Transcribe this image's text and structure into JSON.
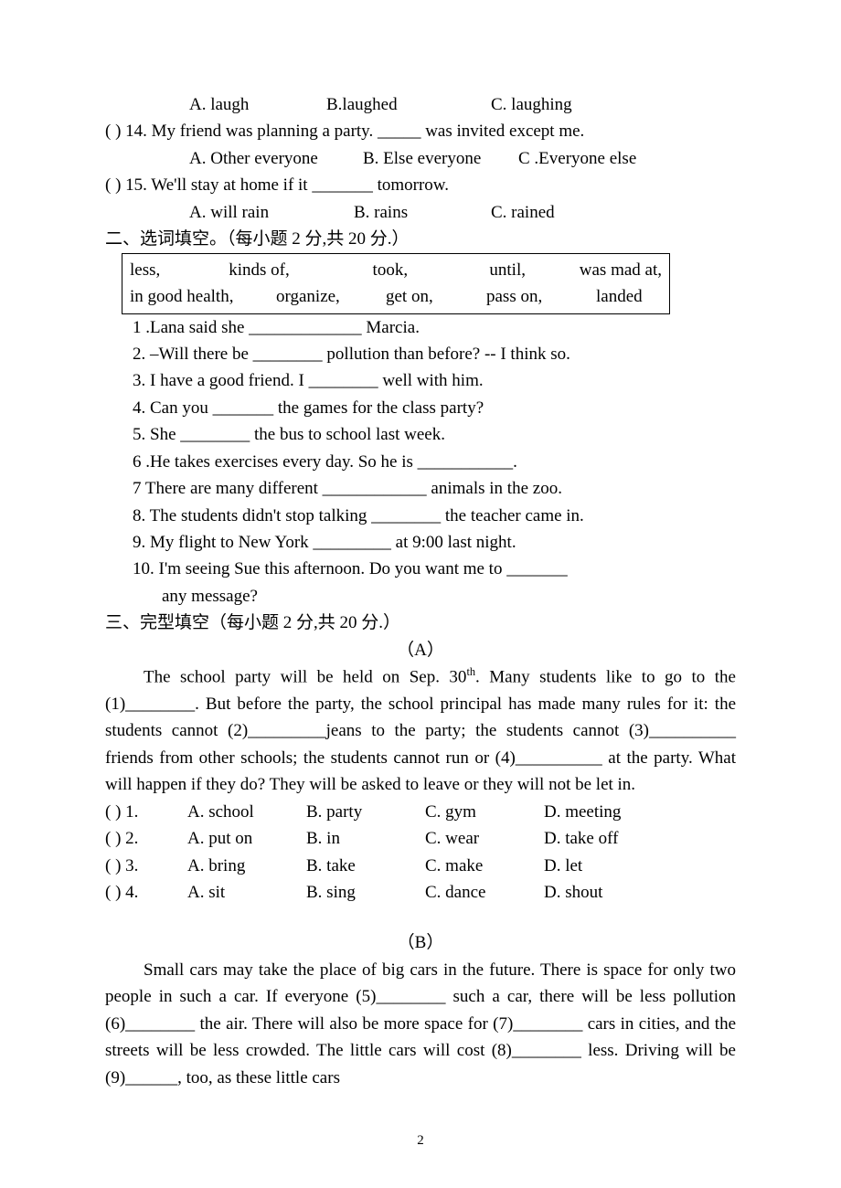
{
  "text_color": "#000000",
  "background_color": "#ffffff",
  "font_family": "Times New Roman",
  "base_fontsize_pt": 14,
  "page_number": "2",
  "q13_opts": {
    "a": "A. laugh",
    "b": "B.laughed",
    "c": "C. laughing"
  },
  "q14": {
    "stem": "(      ) 14. My friend was planning a party. _____ was invited except me.",
    "a": "A. Other everyone",
    "b": "B. Else everyone",
    "c": "C .Everyone else"
  },
  "q15": {
    "stem": "(      ) 15. We'll stay at home if it _______ tomorrow.",
    "a": "A. will rain",
    "b": "B. rains",
    "c": "C. rained"
  },
  "sec2": {
    "title": "二、选词填空。（每小题 2 分,共 20 分.）",
    "box_line1": [
      "less,",
      "kinds of,",
      "took,",
      "until,",
      "was mad at,"
    ],
    "box_line2": [
      "in good health,",
      "organize,",
      "get on,",
      "pass on,",
      "landed"
    ],
    "items": [
      "1 .Lana said she _____________ Marcia.",
      "2. –Will there be ________ pollution than before?     -- I think so.",
      "3. I have a good friend. I ________ well with him.",
      "4. Can you _______ the games for the class party?",
      "5. She ________ the bus to school last week.",
      "6 .He takes exercises every day. So he is ___________.",
      "7 There are many different ____________ animals in the zoo.",
      "8. The students didn't stop talking ________ the teacher came in.",
      "9. My flight to New York _________ at 9:00 last night.",
      "10. I'm seeing Sue this afternoon. Do you want me to _______",
      "any message?"
    ]
  },
  "sec3": {
    "title": "三、完型填空（每小题 2 分,共 20 分.）",
    "A_label": "（A）",
    "A_para": "The school party will be held on Sep. 30<sup>th</sup>. Many students like to go to the (1)________. But before the party, the school principal has made many rules for it: the students cannot (2)_________jeans to the party; the students cannot (3)__________ friends from other schools; the students cannot run or (4)__________ at the party. What will happen if they do? They will be asked to leave or they will not be let in.",
    "A_opts": [
      {
        "n": "(      ) 1.",
        "a": "A. school",
        "b": "B. party",
        "c": "C. gym",
        "d": "D. meeting"
      },
      {
        "n": "(      ) 2.",
        "a": "A. put on",
        "b": "B. in",
        "c": "C. wear",
        "d": "D. take off"
      },
      {
        "n": "(      ) 3.",
        "a": "A. bring",
        "b": "B. take",
        "c": "C. make",
        "d": "D. let"
      },
      {
        "n": "(      ) 4.",
        "a": "A. sit",
        "b": "B. sing",
        "c": "C. dance",
        "d": "D. shout"
      }
    ],
    "B_label": "（B）",
    "B_para": "Small cars may take the place of big cars in the future. There is space for only two people in such a car. If everyone (5)________ such a car, there will be less pollution (6)________ the air. There will also be more space for (7)________ cars in cities, and the streets will be less crowded. The little cars will cost (8)________ less. Driving will be (9)______, too, as these little cars"
  },
  "col_widths": {
    "num": 90,
    "a": 130,
    "b": 130,
    "c": 130,
    "d": 130
  }
}
